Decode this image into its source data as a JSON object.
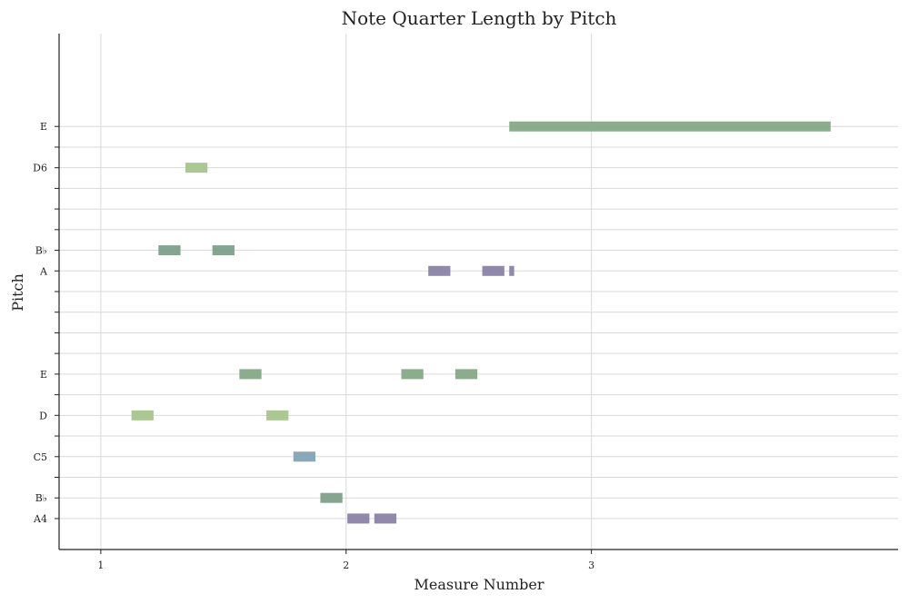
{
  "chart_data": {
    "type": "bar",
    "title": "Note Quarter Length by Pitch",
    "xlabel": "Measure Number",
    "ylabel": "Pitch",
    "xlim": [
      0.83,
      4.25
    ],
    "x_ticks": [
      {
        "value": 1,
        "label": "1"
      },
      {
        "value": 2,
        "label": "2"
      },
      {
        "value": 3,
        "label": "3"
      }
    ],
    "ylim": [
      55.5,
      80.5
    ],
    "y_ticks": [
      {
        "midi": 57,
        "label": "A4"
      },
      {
        "midi": 58,
        "label": "B♭"
      },
      {
        "midi": 59,
        "label": ""
      },
      {
        "midi": 60,
        "label": "C5"
      },
      {
        "midi": 61,
        "label": ""
      },
      {
        "midi": 62,
        "label": "D"
      },
      {
        "midi": 63,
        "label": ""
      },
      {
        "midi": 64,
        "label": "E"
      },
      {
        "midi": 65,
        "label": ""
      },
      {
        "midi": 66,
        "label": ""
      },
      {
        "midi": 67,
        "label": ""
      },
      {
        "midi": 68,
        "label": ""
      },
      {
        "midi": 69,
        "label": "A"
      },
      {
        "midi": 70,
        "label": "B♭"
      },
      {
        "midi": 71,
        "label": ""
      },
      {
        "midi": 72,
        "label": ""
      },
      {
        "midi": 73,
        "label": ""
      },
      {
        "midi": 74,
        "label": "D6"
      },
      {
        "midi": 75,
        "label": ""
      },
      {
        "midi": 76,
        "label": "E"
      }
    ],
    "grid": true,
    "colors": {
      "A": "#8a83a6",
      "B♭": "#80a08a",
      "C": "#84a3b6",
      "D": "#a6c48e",
      "E": "#86a888"
    },
    "notes": [
      {
        "pitch": 62,
        "name": "D",
        "start": 1.125,
        "end": 1.215
      },
      {
        "pitch": 70,
        "name": "B♭",
        "start": 1.235,
        "end": 1.325
      },
      {
        "pitch": 74,
        "name": "D",
        "start": 1.345,
        "end": 1.435
      },
      {
        "pitch": 70,
        "name": "B♭",
        "start": 1.455,
        "end": 1.545
      },
      {
        "pitch": 64,
        "name": "E",
        "start": 1.565,
        "end": 1.655
      },
      {
        "pitch": 62,
        "name": "D",
        "start": 1.675,
        "end": 1.765
      },
      {
        "pitch": 60,
        "name": "C",
        "start": 1.785,
        "end": 1.875
      },
      {
        "pitch": 58,
        "name": "B♭",
        "start": 1.895,
        "end": 1.985
      },
      {
        "pitch": 57,
        "name": "A",
        "start": 2.005,
        "end": 2.095
      },
      {
        "pitch": 57,
        "name": "A",
        "start": 2.115,
        "end": 2.205
      },
      {
        "pitch": 64,
        "name": "E",
        "start": 2.225,
        "end": 2.315
      },
      {
        "pitch": 69,
        "name": "A",
        "start": 2.335,
        "end": 2.425
      },
      {
        "pitch": 64,
        "name": "E",
        "start": 2.445,
        "end": 2.535
      },
      {
        "pitch": 69,
        "name": "A",
        "start": 2.555,
        "end": 2.645
      },
      {
        "pitch": 69,
        "name": "A",
        "start": 2.665,
        "end": 2.685
      },
      {
        "pitch": 76,
        "name": "E",
        "start": 2.665,
        "end": 3.975
      }
    ]
  }
}
